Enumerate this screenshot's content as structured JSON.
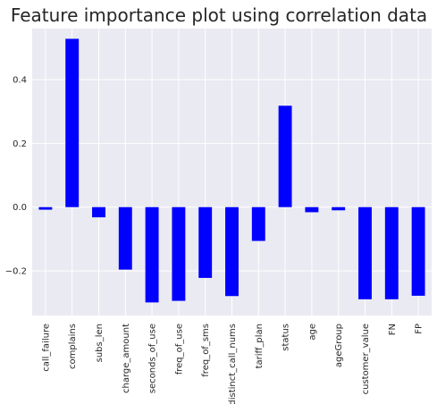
{
  "chart_data": {
    "type": "bar",
    "title": "Feature importance plot using correlation data",
    "xlabel": "",
    "ylabel": "",
    "categories": [
      "call_failure",
      "complains",
      "subs_len",
      "charge_amount",
      "seconds_of_use",
      "freq_of_use",
      "freq_of_sms",
      "distinct_call_nums",
      "tariff_plan",
      "status",
      "age",
      "ageGroup",
      "customer_value",
      "FN",
      "FP"
    ],
    "values": [
      -0.008,
      0.528,
      -0.032,
      -0.196,
      -0.299,
      -0.294,
      -0.222,
      -0.279,
      -0.106,
      0.318,
      -0.016,
      -0.01,
      -0.289,
      -0.289,
      -0.278
    ],
    "ylim": [
      -0.34,
      0.56
    ],
    "yticks": [
      0.4,
      0.2,
      0.0,
      -0.2
    ],
    "ytick_labels": [
      "0.4",
      "0.2",
      "0.0",
      "−0.2"
    ],
    "grid": true,
    "bar_color": "#0000ff",
    "background_color": "#eaeaf2",
    "grid_color": "#ffffff"
  }
}
